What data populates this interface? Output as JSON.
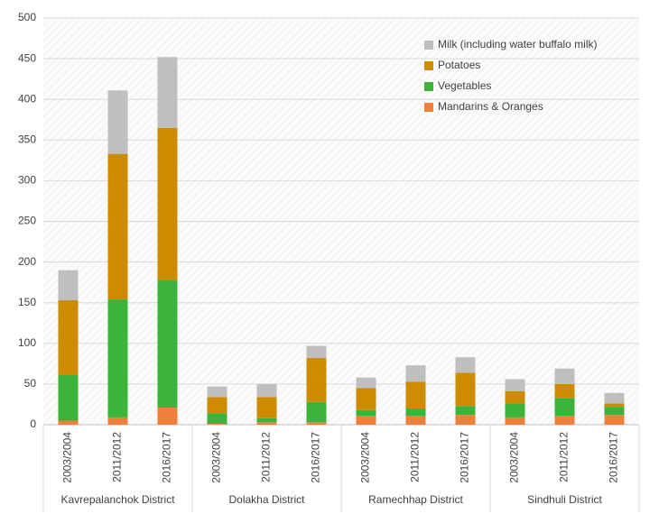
{
  "chart_data": {
    "type": "stacked_bar",
    "categories": [
      "2003/2004",
      "2011/2012",
      "2016/2017",
      "2003/2004",
      "2011/2012",
      "2016/2017",
      "2003/2004",
      "2011/2012",
      "2016/2017",
      "2003/2004",
      "2011/2012",
      "2016/2017"
    ],
    "groups": [
      "Kavrepalanchok District",
      "Dolakha District",
      "Ramechhap District",
      "Sindhuli District"
    ],
    "series": [
      {
        "name": "Mandarins & Oranges",
        "color": "#f07f3c",
        "values": [
          5,
          9,
          21,
          1,
          3,
          3,
          11,
          11,
          12,
          9,
          11,
          12
        ]
      },
      {
        "name": "Vegetables",
        "color": "#3cb43c",
        "values": [
          56,
          145,
          157,
          13,
          5,
          25,
          7,
          9,
          11,
          17,
          22,
          10
        ]
      },
      {
        "name": "Potatoes",
        "color": "#cc8b00",
        "values": [
          92,
          179,
          187,
          20,
          26,
          54,
          27,
          33,
          41,
          15,
          17,
          4
        ]
      },
      {
        "name": "Milk (including water buffalo milk)",
        "color": "#bfbfbf",
        "values": [
          37,
          78,
          87,
          13,
          16,
          15,
          13,
          20,
          19,
          15,
          19,
          13
        ]
      }
    ],
    "ylim": [
      0,
      500
    ],
    "yticks": [
      0,
      50,
      100,
      150,
      200,
      250,
      300,
      350,
      400,
      450,
      500
    ],
    "legend": "upper right"
  }
}
